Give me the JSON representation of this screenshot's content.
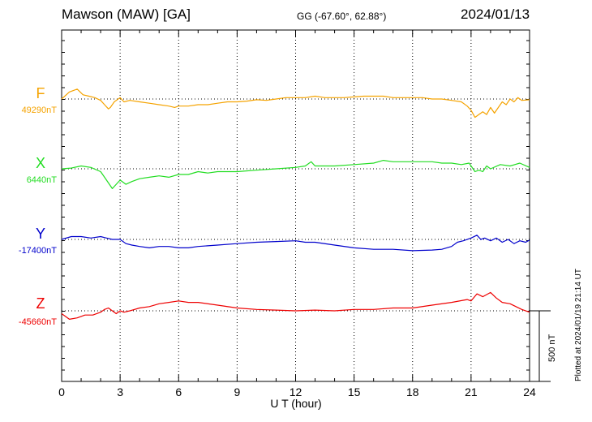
{
  "header": {
    "station": "Mawson (MAW)  [GA]",
    "coords": "GG (-67.60°,  62.88°)",
    "date": "2024/01/13"
  },
  "chart_data": {
    "type": "line",
    "xlabel": "U T (hour)",
    "xlim": [
      0,
      24
    ],
    "xticks": [
      "0",
      "3",
      "6",
      "9",
      "12",
      "15",
      "18",
      "21",
      "24"
    ],
    "scale_bar": {
      "label": "500 nT",
      "value_nT": 500
    },
    "footer_note": "Plotted at 2024/01/19 21:14 UT",
    "series": [
      {
        "name": "F",
        "baseline_label": "49290nT",
        "baseline": 49290,
        "color": "#f5a300",
        "x": [
          0,
          0.4,
          0.8,
          1.1,
          1.4,
          1.7,
          2.0,
          2.2,
          2.4,
          2.5,
          2.7,
          3.0,
          3.2,
          3.5,
          4.0,
          4.5,
          5.0,
          5.5,
          5.8,
          6.0,
          6.5,
          7.0,
          7.5,
          8.0,
          8.5,
          9.0,
          9.5,
          10.0,
          10.5,
          11.0,
          11.5,
          12.0,
          12.5,
          13.0,
          13.5,
          14.0,
          14.5,
          15.0,
          15.5,
          16.0,
          16.5,
          17.0,
          17.5,
          18.0,
          18.5,
          19.0,
          19.5,
          20.0,
          20.5,
          20.8,
          21.0,
          21.2,
          21.4,
          21.6,
          21.8,
          22.0,
          22.2,
          22.4,
          22.6,
          22.8,
          23.0,
          23.2,
          23.4,
          23.6,
          24.0
        ],
        "y": [
          49290,
          49340,
          49360,
          49320,
          49310,
          49300,
          49280,
          49250,
          49220,
          49230,
          49270,
          49300,
          49270,
          49280,
          49270,
          49260,
          49250,
          49240,
          49230,
          49240,
          49240,
          49250,
          49250,
          49260,
          49270,
          49270,
          49275,
          49285,
          49280,
          49290,
          49300,
          49300,
          49300,
          49310,
          49300,
          49300,
          49300,
          49305,
          49310,
          49310,
          49310,
          49300,
          49300,
          49300,
          49300,
          49290,
          49290,
          49280,
          49270,
          49240,
          49210,
          49160,
          49180,
          49200,
          49180,
          49230,
          49190,
          49230,
          49270,
          49250,
          49290,
          49270,
          49300,
          49280,
          49285
        ]
      },
      {
        "name": "X",
        "baseline_label": "6440nT",
        "baseline": 6440,
        "color": "#22dd22",
        "x": [
          0,
          0.5,
          1.0,
          1.5,
          2.0,
          2.2,
          2.4,
          2.6,
          2.8,
          3.0,
          3.3,
          3.6,
          4.0,
          4.5,
          5.0,
          5.5,
          6.0,
          6.5,
          7.0,
          7.5,
          8.0,
          9.0,
          10.0,
          11.0,
          12.0,
          12.5,
          12.8,
          13.0,
          13.5,
          14.0,
          15.0,
          16.0,
          16.5,
          17.0,
          18.0,
          19.0,
          19.5,
          20.0,
          20.5,
          20.9,
          21.2,
          21.4,
          21.6,
          21.8,
          22.0,
          22.5,
          23.0,
          23.5,
          24.0
        ],
        "y": [
          6440,
          6445,
          6460,
          6450,
          6420,
          6380,
          6340,
          6300,
          6330,
          6360,
          6330,
          6350,
          6370,
          6380,
          6390,
          6380,
          6400,
          6400,
          6420,
          6410,
          6420,
          6420,
          6430,
          6440,
          6450,
          6460,
          6490,
          6460,
          6460,
          6460,
          6470,
          6480,
          6500,
          6490,
          6490,
          6490,
          6480,
          6480,
          6470,
          6480,
          6420,
          6430,
          6420,
          6460,
          6440,
          6470,
          6460,
          6480,
          6450
        ]
      },
      {
        "name": "Y",
        "baseline_label": "-17400nT",
        "baseline": -17400,
        "color": "#0000cc",
        "x": [
          0,
          0.5,
          1.0,
          1.5,
          2.0,
          2.3,
          2.6,
          3.0,
          3.3,
          3.6,
          4.0,
          4.5,
          5.0,
          5.5,
          6.0,
          6.5,
          7.0,
          8.0,
          9.0,
          10.0,
          11.0,
          12.0,
          12.5,
          13.0,
          14.0,
          15.0,
          16.0,
          17.0,
          18.0,
          19.0,
          19.5,
          20.0,
          20.3,
          20.6,
          21.0,
          21.3,
          21.5,
          21.7,
          22.0,
          22.3,
          22.6,
          22.9,
          23.2,
          23.5,
          23.8,
          24.0
        ],
        "y": [
          -17400,
          -17380,
          -17380,
          -17390,
          -17380,
          -17390,
          -17400,
          -17400,
          -17430,
          -17440,
          -17450,
          -17460,
          -17450,
          -17450,
          -17460,
          -17460,
          -17450,
          -17440,
          -17430,
          -17420,
          -17415,
          -17410,
          -17420,
          -17420,
          -17440,
          -17460,
          -17470,
          -17470,
          -17480,
          -17475,
          -17470,
          -17450,
          -17420,
          -17410,
          -17390,
          -17370,
          -17400,
          -17390,
          -17410,
          -17390,
          -17420,
          -17400,
          -17430,
          -17410,
          -17420,
          -17405
        ]
      },
      {
        "name": "Z",
        "baseline_label": "-45660nT",
        "baseline": -45660,
        "color": "#ee0000",
        "x": [
          0,
          0.4,
          0.8,
          1.2,
          1.6,
          2.0,
          2.2,
          2.4,
          2.6,
          2.8,
          3.0,
          3.2,
          3.5,
          4.0,
          4.5,
          5.0,
          5.5,
          6.0,
          6.5,
          7.0,
          8.0,
          9.0,
          10.0,
          11.0,
          12.0,
          13.0,
          14.0,
          15.0,
          16.0,
          17.0,
          18.0,
          19.0,
          20.0,
          20.8,
          21.0,
          21.3,
          21.6,
          22.0,
          22.3,
          22.6,
          23.0,
          23.3,
          23.6,
          24.0
        ],
        "y": [
          -45680,
          -45720,
          -45710,
          -45690,
          -45690,
          -45670,
          -45650,
          -45640,
          -45660,
          -45680,
          -45660,
          -45670,
          -45660,
          -45640,
          -45630,
          -45610,
          -45600,
          -45590,
          -45600,
          -45600,
          -45620,
          -45640,
          -45650,
          -45655,
          -45660,
          -45655,
          -45660,
          -45650,
          -45650,
          -45640,
          -45640,
          -45620,
          -45600,
          -45580,
          -45590,
          -45540,
          -45560,
          -45530,
          -45570,
          -45600,
          -45610,
          -45630,
          -45650,
          -45670
        ]
      }
    ]
  }
}
